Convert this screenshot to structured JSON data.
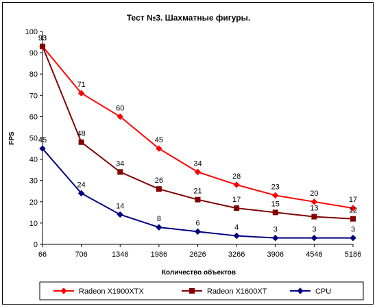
{
  "chart_data": {
    "type": "line",
    "title": "Тест №3. Шахматные фигуры.",
    "xlabel": "Количество объектов",
    "ylabel": "FPS",
    "x": [
      "66",
      "706",
      "1346",
      "1986",
      "2626",
      "3266",
      "3906",
      "4546",
      "5186"
    ],
    "ylim": [
      0,
      100
    ],
    "yticks": [
      0,
      10,
      20,
      30,
      40,
      50,
      60,
      70,
      80,
      90,
      100
    ],
    "grid": false,
    "legend_position": "bottom",
    "series": [
      {
        "name": "Radeon X1900XTX",
        "values": [
          93,
          71,
          60,
          45,
          34,
          28,
          23,
          20,
          17
        ],
        "color": "#ff0000",
        "marker": "diamond"
      },
      {
        "name": "Radeon X1600XT",
        "values": [
          93,
          48,
          34,
          26,
          21,
          17,
          15,
          13,
          12
        ],
        "color": "#800000",
        "marker": "square"
      },
      {
        "name": "CPU",
        "values": [
          45,
          24,
          14,
          8,
          6,
          4,
          3,
          3,
          3
        ],
        "color": "#000080",
        "marker": "diamond"
      }
    ]
  }
}
